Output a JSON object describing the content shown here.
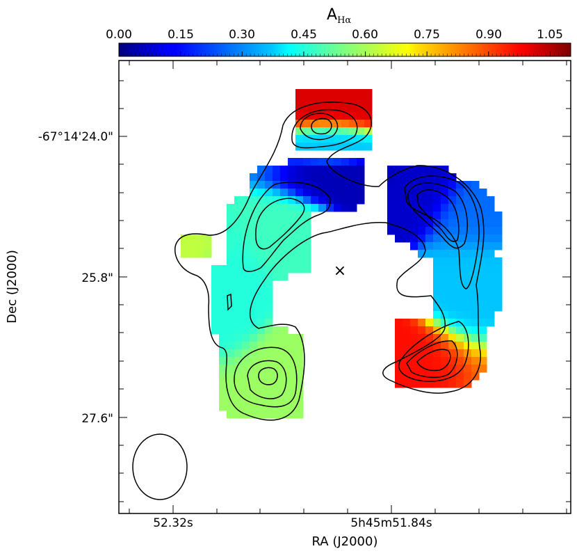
{
  "chart_data": {
    "type": "heatmap",
    "colorbar": {
      "label_main": "A",
      "label_sub": "Hα",
      "ticks": [
        "0.00",
        "0.15",
        "0.30",
        "0.45",
        "0.60",
        "0.75",
        "0.90",
        "1.05"
      ],
      "range": [
        0.0,
        1.1
      ],
      "colormap": "jet"
    },
    "xlabel": "RA (J2000)",
    "ylabel": "Dec (J2000)",
    "x_ticks": [
      "52.32s",
      "5h45m51.84s"
    ],
    "y_ticks": [
      "-67°14'24.0\"",
      "25.8\"",
      "27.6\""
    ],
    "marker": "×",
    "beam": "ellipse"
  }
}
